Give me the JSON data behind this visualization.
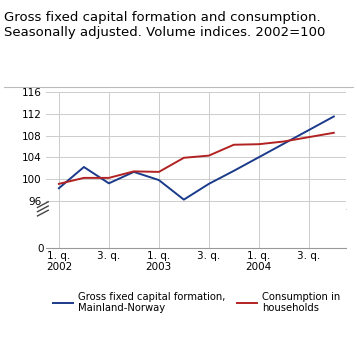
{
  "title": "Gross fixed capital formation and consumption.\nSeasonally adjusted. Volume indices. 2002=100",
  "title_fontsize": 9.5,
  "blue_x": [
    0,
    1,
    2,
    3,
    4,
    5,
    6,
    7,
    11
  ],
  "blue_y": [
    98.3,
    102.2,
    99.2,
    101.3,
    99.8,
    96.2,
    99.1,
    101.5,
    111.5
  ],
  "red_x": [
    0,
    1,
    2,
    3,
    4,
    5,
    6,
    7,
    8,
    9,
    11
  ],
  "red_y": [
    99.1,
    100.2,
    100.2,
    101.4,
    101.3,
    103.9,
    104.3,
    106.3,
    106.4,
    106.9,
    108.5
  ],
  "blue_color": "#1a3a8a",
  "red_color": "#b22222",
  "x_tick_pos": [
    0,
    2,
    4,
    6,
    8,
    10
  ],
  "x_tick_labels": [
    "1. q.\n2002",
    "3. q.",
    "1. q.\n2003",
    "3. q.",
    "1. q.\n2004",
    "3. q."
  ],
  "yticks_data": [
    96,
    100,
    104,
    108,
    112,
    116
  ],
  "ylim_data": [
    94.5,
    116.0
  ],
  "legend_blue": "Gross fixed capital formation,\nMainland-Norway",
  "legend_red": "Consumption in\nhouseholds",
  "grid_color": "#cccccc",
  "bg_color": "#ffffff"
}
